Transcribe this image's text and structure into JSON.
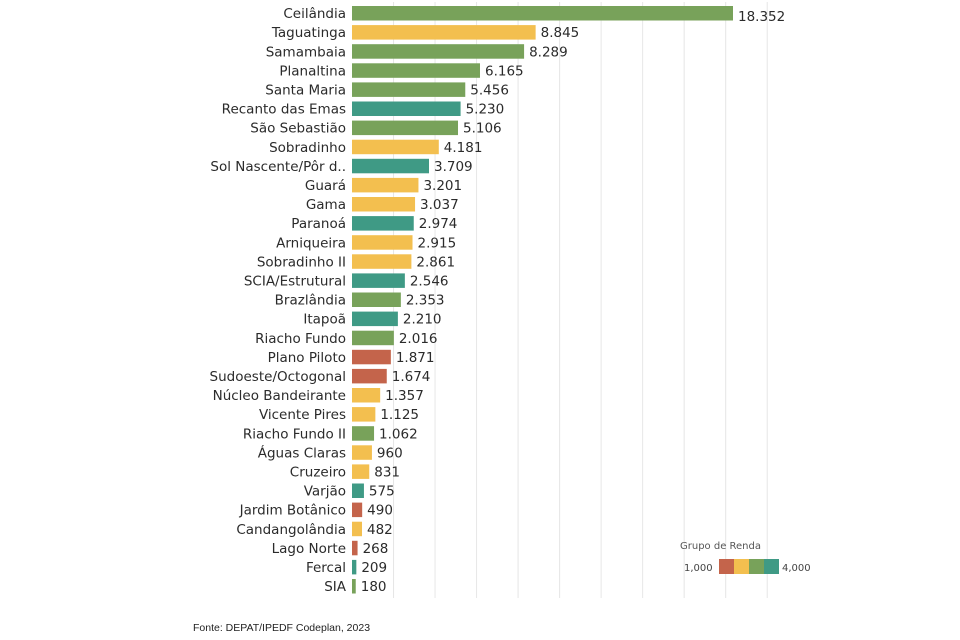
{
  "chart_data": {
    "type": "bar",
    "orientation": "horizontal",
    "categories": [
      "Ceilândia",
      "Taguatinga",
      "Samambaia",
      "Planaltina",
      "Santa Maria",
      "Recanto das Emas",
      "São Sebastião",
      "Sobradinho",
      "Sol Nascente/Pôr d..",
      "Guará",
      "Gama",
      "Paranoá",
      "Arniqueira",
      "Sobradinho II",
      "SCIA/Estrutural",
      "Brazlândia",
      "Itapoã",
      "Riacho Fundo",
      "Plano Piloto",
      "Sudoeste/Octogonal",
      "Núcleo Bandeirante",
      "Vicente Pires",
      "Riacho Fundo II",
      "Águas Claras",
      "Cruzeiro",
      "Varjão",
      "Jardim Botânico",
      "Candangolândia",
      "Lago Norte",
      "Fercal",
      "SIA"
    ],
    "values": [
      18352,
      8845,
      8289,
      6165,
      5456,
      5230,
      5106,
      4181,
      3709,
      3201,
      3037,
      2974,
      2915,
      2861,
      2546,
      2353,
      2210,
      2016,
      1871,
      1674,
      1357,
      1125,
      1062,
      960,
      831,
      575,
      490,
      482,
      268,
      209,
      180
    ],
    "value_labels": [
      "18.352",
      "8.845",
      "8.289",
      "6.165",
      "5.456",
      "5.230",
      "5.106",
      "4.181",
      "3.709",
      "3.201",
      "3.037",
      "2.974",
      "2.915",
      "2.861",
      "2.546",
      "2.353",
      "2.210",
      "2.016",
      "1.871",
      "1.674",
      "1.357",
      "1.125",
      "1.062",
      "960",
      "831",
      "575",
      "490",
      "482",
      "268",
      "209",
      "180"
    ],
    "colors": [
      "#78a25a",
      "#f3bf4f",
      "#78a25a",
      "#78a25a",
      "#78a25a",
      "#3f9a85",
      "#78a25a",
      "#f3bf4f",
      "#3f9a85",
      "#f3bf4f",
      "#f3bf4f",
      "#3f9a85",
      "#f3bf4f",
      "#f3bf4f",
      "#3f9a85",
      "#78a25a",
      "#3f9a85",
      "#78a25a",
      "#c4644b",
      "#c4644b",
      "#f3bf4f",
      "#f3bf4f",
      "#78a25a",
      "#f3bf4f",
      "#f3bf4f",
      "#3f9a85",
      "#c4644b",
      "#f3bf4f",
      "#c4644b",
      "#3f9a85",
      "#78a25a"
    ],
    "xlim": [
      0,
      20000
    ],
    "grid": true,
    "legend": {
      "title": "Grupo de Renda",
      "min_label": "1,000",
      "max_label": "4,000",
      "colors": [
        "#c4644b",
        "#f3bf4f",
        "#78a25a",
        "#3f9a85"
      ],
      "placement": "bottom-right"
    }
  },
  "footer": {
    "source": "Fonte: DEPAT/IPEDF Codeplan, 2023"
  }
}
